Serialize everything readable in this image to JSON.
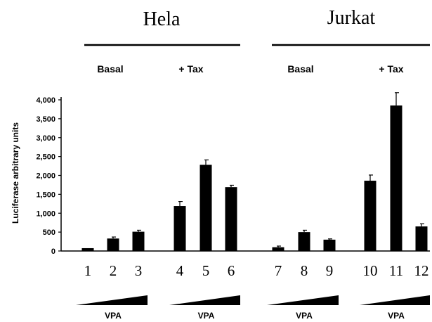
{
  "chart_data": {
    "type": "bar",
    "ylabel": "Luciferase arbitrary units",
    "ylim": [
      0,
      4000
    ],
    "y_ticks": [
      "0",
      "500",
      "1,000",
      "1,500",
      "2,000",
      "2,500",
      "3,000",
      "3,500",
      "4,000"
    ],
    "cell_lines": [
      {
        "label": "Hela",
        "conditions": [
          {
            "label": "Basal",
            "lanes": [
              "1",
              "2",
              "3"
            ]
          },
          {
            "label": "+ Tax",
            "lanes": [
              "4",
              "5",
              "6"
            ]
          }
        ]
      },
      {
        "label": "Jurkat",
        "conditions": [
          {
            "label": "Basal",
            "lanes": [
              "7",
              "8",
              "9"
            ]
          },
          {
            "label": "+ Tax",
            "lanes": [
              "10",
              "11",
              "12"
            ]
          }
        ]
      }
    ],
    "categories": [
      "1",
      "2",
      "3",
      "4",
      "5",
      "6",
      "7",
      "8",
      "9",
      "10",
      "11",
      "12"
    ],
    "values": [
      75,
      330,
      510,
      1190,
      2280,
      1690,
      100,
      500,
      300,
      1860,
      3850,
      650
    ],
    "errors": [
      0,
      40,
      40,
      120,
      130,
      50,
      30,
      50,
      20,
      150,
      340,
      70
    ],
    "treatment_label": "VPA",
    "treatment_groups": 4
  }
}
